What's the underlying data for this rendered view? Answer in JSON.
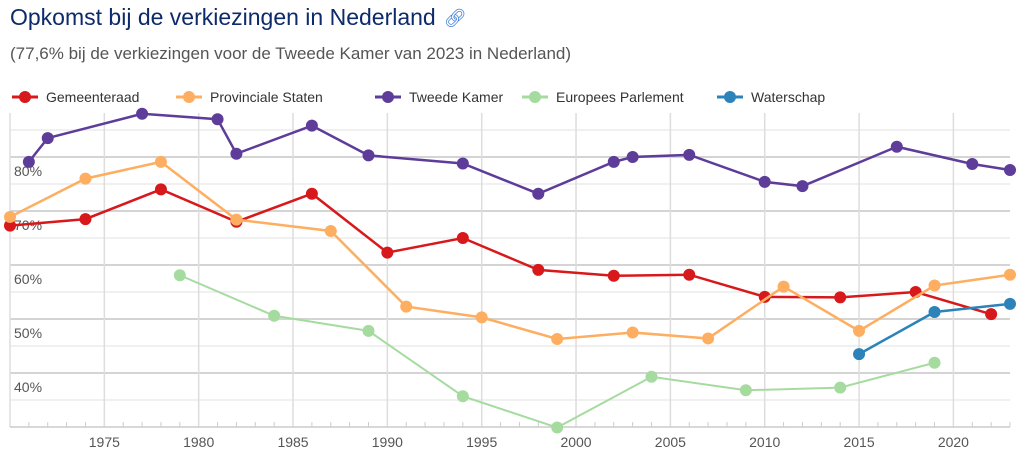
{
  "header": {
    "title": "Opkomst bij de verkiezingen in Nederland",
    "link_icon": "link-icon",
    "subtitle": "(77,6% bij de verkiezingen voor de Tweede Kamer van 2023 in Nederland)"
  },
  "chart_data": {
    "type": "line",
    "title": "Opkomst bij de verkiezingen in Nederland",
    "subtitle": "(77,6% bij de verkiezingen voor de Tweede Kamer van 2023 in Nederland)",
    "xlabel": "",
    "ylabel": "",
    "xlim": [
      1970,
      2023
    ],
    "ylim": [
      30,
      88
    ],
    "grid": true,
    "legend": "top",
    "x_ticks": [
      "1975",
      "1980",
      "1985",
      "1990",
      "1995",
      "2000",
      "2005",
      "2010",
      "2015",
      "2020"
    ],
    "y_ticks": [
      "40%",
      "50%",
      "60%",
      "70%",
      "80%"
    ],
    "series": [
      {
        "name": "Gemeenteraad",
        "color": "#d7191c",
        "points": [
          [
            1970,
            67.3
          ],
          [
            1974,
            68.5
          ],
          [
            1978,
            74.0
          ],
          [
            1982,
            68.0
          ],
          [
            1986,
            73.2
          ],
          [
            1990,
            62.3
          ],
          [
            1994,
            65.0
          ],
          [
            1998,
            59.1
          ],
          [
            2002,
            58.0
          ],
          [
            2006,
            58.2
          ],
          [
            2010,
            54.1
          ],
          [
            2014,
            54.0
          ],
          [
            2018,
            55.0
          ],
          [
            2022,
            50.9
          ]
        ]
      },
      {
        "name": "Provinciale Staten",
        "color": "#fdae61",
        "points": [
          [
            1970,
            68.9
          ],
          [
            1974,
            76.0
          ],
          [
            1978,
            79.1
          ],
          [
            1982,
            68.4
          ],
          [
            1987,
            66.3
          ],
          [
            1991,
            52.3
          ],
          [
            1995,
            50.3
          ],
          [
            1999,
            46.3
          ],
          [
            2003,
            47.5
          ],
          [
            2007,
            46.4
          ],
          [
            2011,
            56.0
          ],
          [
            2015,
            47.8
          ],
          [
            2019,
            56.2
          ],
          [
            2023,
            58.2
          ]
        ]
      },
      {
        "name": "Tweede Kamer",
        "color": "#5e3c99",
        "points": [
          [
            1971,
            79.1
          ],
          [
            1972,
            83.5
          ],
          [
            1977,
            88.0
          ],
          [
            1981,
            87.0
          ],
          [
            1982,
            80.6
          ],
          [
            1986,
            85.8
          ],
          [
            1989,
            80.3
          ],
          [
            1994,
            78.8
          ],
          [
            1998,
            73.2
          ],
          [
            2002,
            79.1
          ],
          [
            2003,
            80.0
          ],
          [
            2006,
            80.4
          ],
          [
            2010,
            75.4
          ],
          [
            2012,
            74.6
          ],
          [
            2017,
            81.9
          ],
          [
            2021,
            78.7
          ],
          [
            2023,
            77.6
          ]
        ]
      },
      {
        "name": "Europees Parlement",
        "color": "#a6dba0",
        "points": [
          [
            1979,
            58.1
          ],
          [
            1984,
            50.6
          ],
          [
            1989,
            47.8
          ],
          [
            1994,
            35.7
          ],
          [
            1999,
            29.9
          ],
          [
            2004,
            39.3
          ],
          [
            2009,
            36.8
          ],
          [
            2014,
            37.3
          ],
          [
            2019,
            41.9
          ]
        ]
      },
      {
        "name": "Waterschap",
        "color": "#2b83ba",
        "points": [
          [
            2015,
            43.5
          ],
          [
            2019,
            51.3
          ],
          [
            2023,
            52.8
          ]
        ]
      }
    ]
  }
}
